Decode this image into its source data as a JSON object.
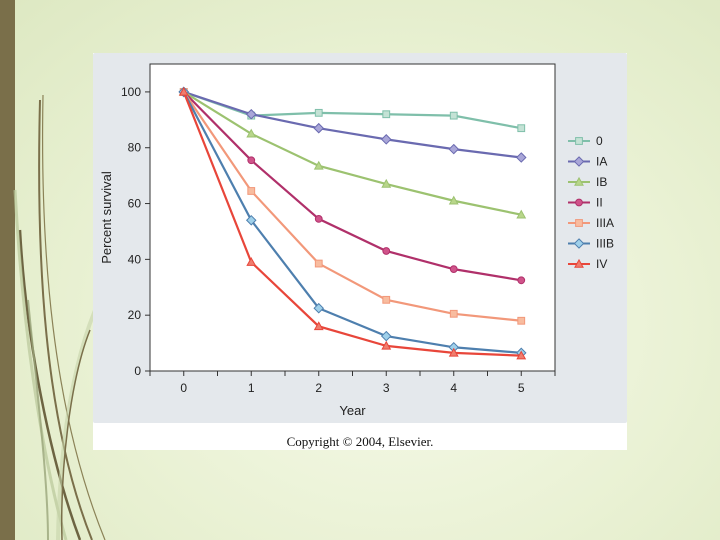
{
  "copyright": "Copyright © 2004, Elsevier.",
  "chart_data": {
    "type": "line",
    "title": "",
    "xlabel": "Year",
    "ylabel": "Percent survival",
    "x": [
      0,
      1,
      2,
      3,
      4,
      5
    ],
    "x_ticks": [
      "0",
      "1",
      "2",
      "3",
      "4",
      "5"
    ],
    "y_ticks": [
      "0",
      "20",
      "40",
      "60",
      "80",
      "100"
    ],
    "xlim": [
      -0.5,
      5.5
    ],
    "ylim": [
      0,
      110
    ],
    "grid": false,
    "legend_position": "right",
    "series": [
      {
        "name": "0",
        "line_color": "#7fbfaa",
        "marker": "square",
        "marker_fill": "#c4e2d5",
        "values": [
          100,
          91.5,
          92.5,
          92,
          91.5,
          87
        ]
      },
      {
        "name": "IA",
        "line_color": "#6a6ab0",
        "marker": "diamond",
        "marker_fill": "#a9a6d8",
        "values": [
          100,
          92,
          87,
          83,
          79.5,
          76.5
        ]
      },
      {
        "name": "IB",
        "line_color": "#9cc270",
        "marker": "triangle",
        "marker_fill": "#b8d68a",
        "values": [
          100,
          85,
          73.5,
          67,
          61,
          56
        ]
      },
      {
        "name": "II",
        "line_color": "#b0306a",
        "marker": "circle",
        "marker_fill": "#d0538a",
        "values": [
          100,
          75.5,
          54.5,
          43,
          36.5,
          32.5
        ]
      },
      {
        "name": "IIIA",
        "line_color": "#f2987a",
        "marker": "square",
        "marker_fill": "#f8bc9f",
        "values": [
          100,
          64.5,
          38.5,
          25.5,
          20.5,
          18
        ]
      },
      {
        "name": "IIIB",
        "line_color": "#4e7fae",
        "marker": "diamond",
        "marker_fill": "#9fd0ea",
        "values": [
          100,
          54,
          22.5,
          12.5,
          8.5,
          6.5
        ]
      },
      {
        "name": "IV",
        "line_color": "#e8463a",
        "marker": "triangle",
        "marker_fill": "#ef7d6e",
        "values": [
          100,
          39,
          16,
          9,
          6.5,
          5.5
        ]
      }
    ]
  }
}
